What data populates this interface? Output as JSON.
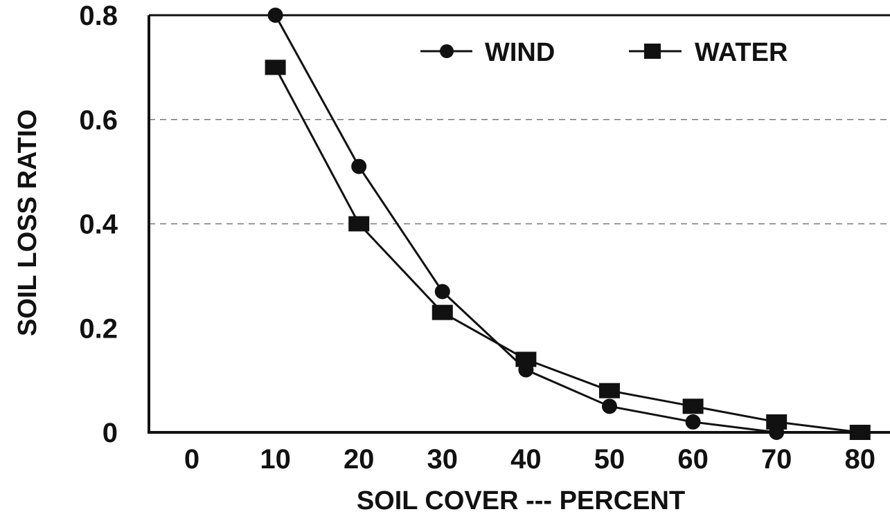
{
  "chart_data": {
    "type": "line",
    "title": "",
    "xlabel": "SOIL COVER --- PERCENT",
    "ylabel": "SOIL LOSS RATIO",
    "xlim": [
      0,
      80
    ],
    "ylim": [
      0,
      0.8
    ],
    "x_ticks": [
      "0",
      "10",
      "20",
      "30",
      "40",
      "50",
      "60",
      "70",
      "80"
    ],
    "y_ticks": [
      "0",
      "0.2",
      "0.4",
      "0.6",
      "0.8"
    ],
    "grid": "horizontal dashed at 0.4 and 0.6",
    "legend_position": "top-right",
    "series": [
      {
        "name": "WIND",
        "marker": "circle",
        "color": "#111111",
        "x": [
          10,
          20,
          30,
          40,
          50,
          60,
          70,
          80
        ],
        "y": [
          0.8,
          0.51,
          0.27,
          0.12,
          0.05,
          0.02,
          0.0,
          0.0
        ]
      },
      {
        "name": "WATER",
        "marker": "square",
        "color": "#111111",
        "x": [
          10,
          20,
          30,
          40,
          50,
          60,
          70,
          80
        ],
        "y": [
          0.7,
          0.4,
          0.23,
          0.14,
          0.08,
          0.05,
          0.02,
          0.0
        ]
      }
    ]
  }
}
